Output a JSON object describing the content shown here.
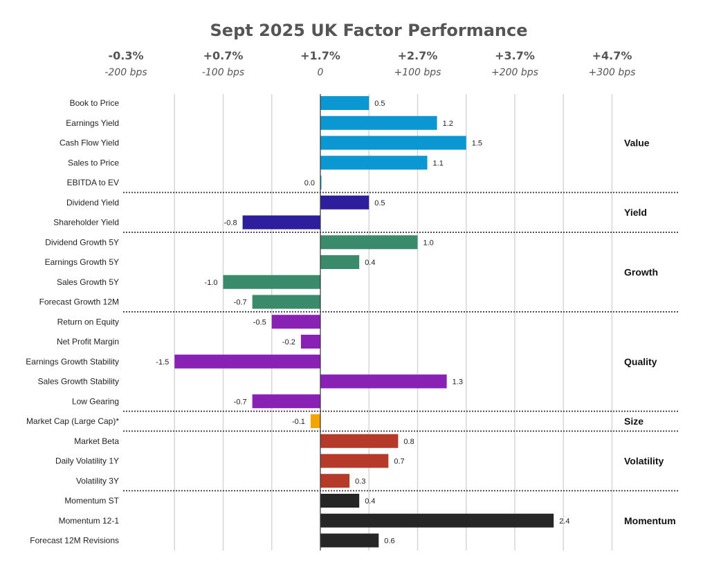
{
  "chart_data": {
    "type": "bar",
    "orientation": "horizontal",
    "title": "Sept 2025 UK Factor Performance",
    "x_axis": {
      "top_labels": [
        "-0.3%",
        "+0.7%",
        "+1.7%",
        "+2.7%",
        "+3.7%",
        "+4.7%"
      ],
      "bottom_labels": [
        "-200 bps",
        "-100 bps",
        "0",
        "+100 bps",
        "+200 bps",
        "+300 bps"
      ],
      "xlim": [
        -3,
        6
      ]
    },
    "grid": true,
    "groups": [
      {
        "name": "Value",
        "color": "#0B98D2",
        "factors": [
          {
            "label": "Book to Price",
            "value": 0.5,
            "value_label": "0.5"
          },
          {
            "label": "Earnings Yield",
            "value": 1.2,
            "value_label": "1.2"
          },
          {
            "label": "Cash Flow Yield",
            "value": 1.5,
            "value_label": "1.5"
          },
          {
            "label": "Sales to Price",
            "value": 1.1,
            "value_label": "1.1"
          },
          {
            "label": "EBITDA to EV",
            "value": 0.0,
            "value_label": "0.0"
          }
        ]
      },
      {
        "name": "Yield",
        "color": "#2D1E9E",
        "factors": [
          {
            "label": "Dividend Yield",
            "value": 0.5,
            "value_label": "0.5"
          },
          {
            "label": "Shareholder Yield",
            "value": -0.8,
            "value_label": "-0.8"
          }
        ]
      },
      {
        "name": "Growth",
        "color": "#3A8B6B",
        "factors": [
          {
            "label": "Dividend Growth 5Y",
            "value": 1.0,
            "value_label": "1.0"
          },
          {
            "label": "Earnings Growth 5Y",
            "value": 0.4,
            "value_label": "0.4"
          },
          {
            "label": "Sales Growth 5Y",
            "value": -1.0,
            "value_label": "-1.0"
          },
          {
            "label": "Forecast Growth 12M",
            "value": -0.7,
            "value_label": "-0.7"
          }
        ]
      },
      {
        "name": "Quality",
        "color": "#8A21B5",
        "factors": [
          {
            "label": "Return on Equity",
            "value": -0.5,
            "value_label": "-0.5"
          },
          {
            "label": "Net Profit Margin",
            "value": -0.2,
            "value_label": "-0.2"
          },
          {
            "label": "Earnings Growth Stability",
            "value": -1.5,
            "value_label": "-1.5"
          },
          {
            "label": "Sales Growth Stability",
            "value": 1.3,
            "value_label": "1.3"
          },
          {
            "label": "Low Gearing",
            "value": -0.7,
            "value_label": "-0.7"
          }
        ]
      },
      {
        "name": "Size",
        "color": "#F5A300",
        "factors": [
          {
            "label": "Market Cap (Large Cap)*",
            "value": -0.1,
            "value_label": "-0.1"
          }
        ]
      },
      {
        "name": "Volatility",
        "color": "#B53A2A",
        "factors": [
          {
            "label": "Market Beta",
            "value": 0.8,
            "value_label": "0.8"
          },
          {
            "label": "Daily Volatility 1Y",
            "value": 0.7,
            "value_label": "0.7"
          },
          {
            "label": "Volatility 3Y",
            "value": 0.3,
            "value_label": "0.3"
          }
        ]
      },
      {
        "name": "Momentum",
        "color": "#262626",
        "factors": [
          {
            "label": "Momentum ST",
            "value": 0.4,
            "value_label": "0.4"
          },
          {
            "label": "Momentum 12-1",
            "value": 2.4,
            "value_label": "2.4"
          },
          {
            "label": "Forecast 12M Revisions",
            "value": 0.6,
            "value_label": "0.6"
          }
        ]
      }
    ]
  }
}
